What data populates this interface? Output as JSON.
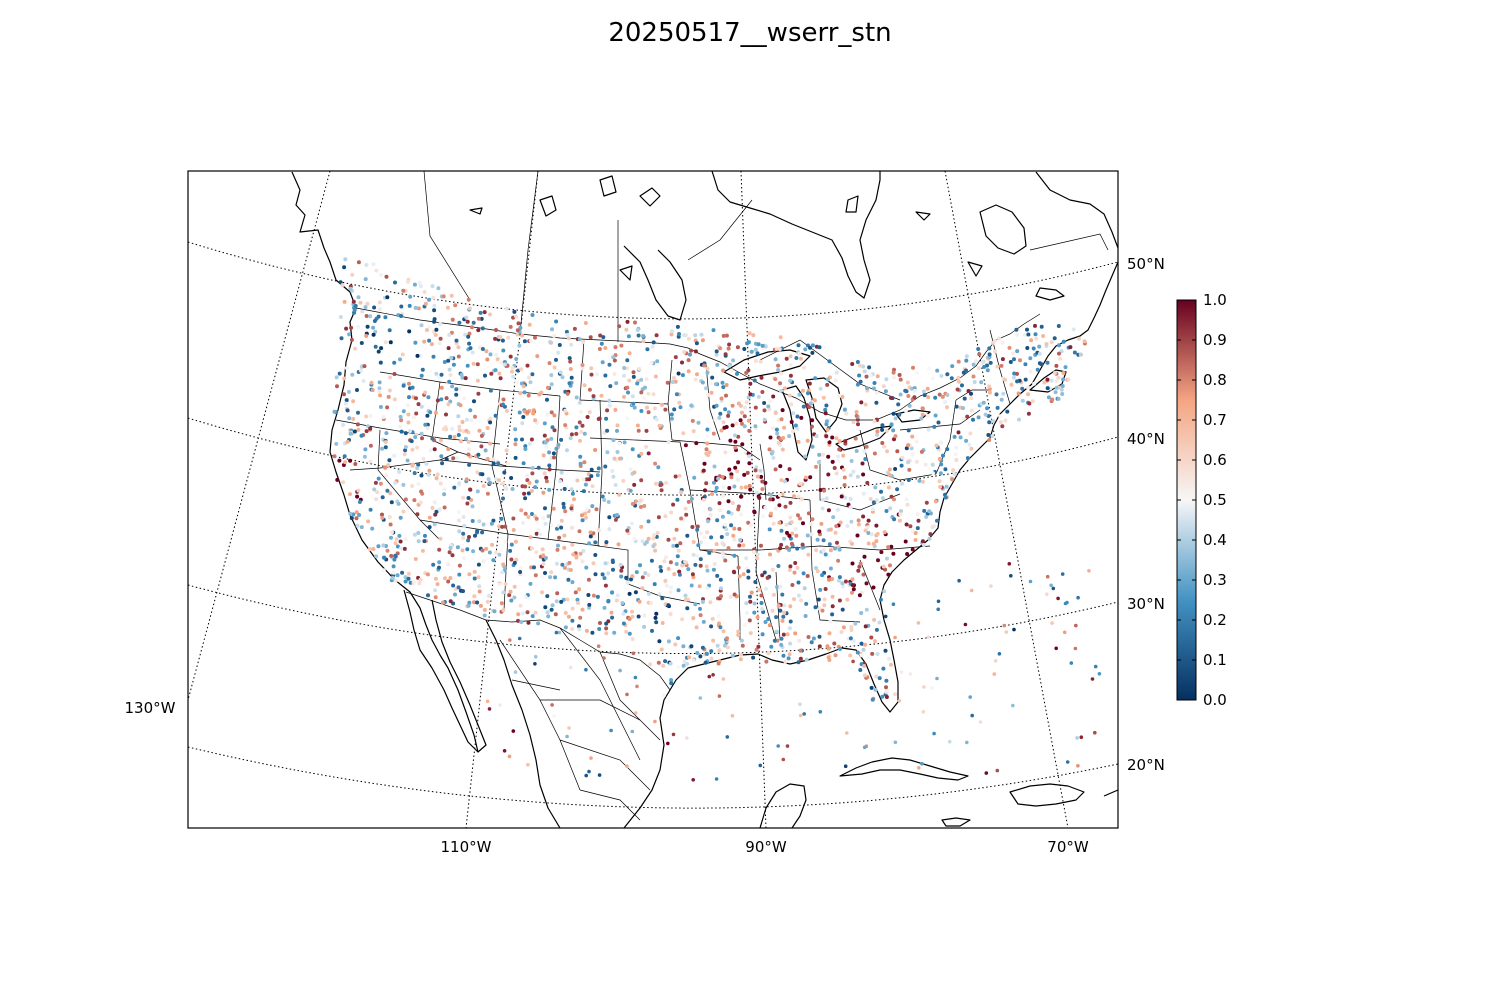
{
  "title": "20250517__wserr_stn",
  "map": {
    "projection": "lambert-conformal",
    "lon_labels": [
      "130°W",
      "110°W",
      "90°W",
      "70°W"
    ],
    "lat_labels": [
      "50°N",
      "40°N",
      "30°N",
      "20°N"
    ]
  },
  "colorbar": {
    "colormap": "RdBu_r",
    "range": [
      0.0,
      1.0
    ],
    "ticks": [
      "0.0",
      "0.1",
      "0.2",
      "0.3",
      "0.4",
      "0.5",
      "0.6",
      "0.7",
      "0.8",
      "0.9",
      "1.0"
    ],
    "colors": {
      "low": "#053061",
      "mid_low": "#4393c3",
      "mid": "#f7f7f7",
      "mid_high": "#f4a582",
      "high": "#67001f"
    }
  }
}
